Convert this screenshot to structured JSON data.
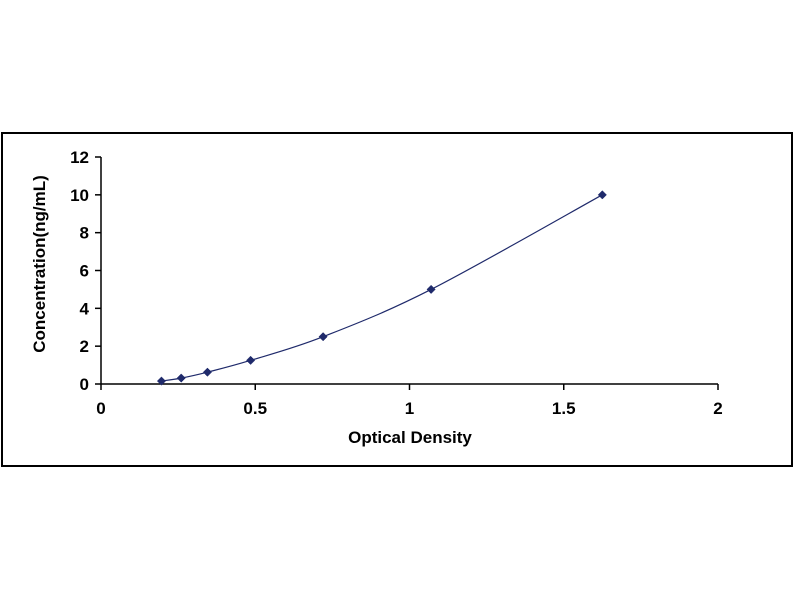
{
  "chart_data": {
    "type": "scatter",
    "title": "",
    "xlabel": "Optical Density",
    "ylabel": "Concentration(ng/mL)",
    "xlim": [
      0,
      2
    ],
    "ylim": [
      0,
      12
    ],
    "x_ticks": [
      "0",
      "0.5",
      "1",
      "1.5",
      "2"
    ],
    "y_ticks": [
      "0",
      "2",
      "4",
      "6",
      "8",
      "10",
      "12"
    ],
    "grid": false,
    "legend": "none",
    "trendline": "smooth curve through points",
    "series": [
      {
        "x": [
          0.196,
          0.26,
          0.345,
          0.485,
          0.72,
          1.07,
          1.625
        ],
        "y": [
          0.156,
          0.312,
          0.625,
          1.25,
          2.5,
          5,
          10
        ]
      }
    ],
    "colors": {
      "marker": "#1f2a6b",
      "curve": "#1f2a6b",
      "axis": "#000000",
      "frame": "#000000"
    }
  }
}
